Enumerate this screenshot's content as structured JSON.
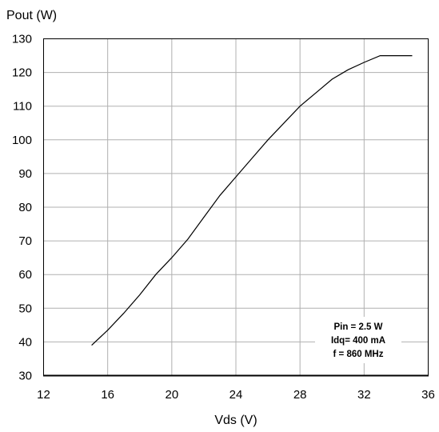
{
  "chart_data": {
    "type": "line",
    "xlabel": "Vds (V)",
    "ylabel": "Pout (W)",
    "xlim": [
      12,
      36
    ],
    "ylim": [
      30,
      130
    ],
    "xticks": [
      "12",
      "16",
      "20",
      "24",
      "28",
      "32",
      "36"
    ],
    "yticks": [
      "30",
      "40",
      "50",
      "60",
      "70",
      "80",
      "90",
      "100",
      "110",
      "120",
      "130"
    ],
    "grid": true,
    "annotation": [
      "Pin = 2.5 W",
      "Idq= 400 mA",
      "f = 860 MHz"
    ],
    "series": [
      {
        "x": [
          15,
          16,
          17,
          18,
          19,
          20,
          21,
          22,
          23,
          24,
          25,
          26,
          27,
          28,
          29,
          30,
          31,
          32,
          33,
          34,
          35
        ],
        "y": [
          39,
          43.5,
          48.5,
          54,
          60,
          65,
          70.5,
          77,
          83.5,
          89,
          94.5,
          100,
          105,
          110,
          114,
          118,
          120.8,
          123,
          125,
          125,
          125
        ]
      }
    ]
  }
}
